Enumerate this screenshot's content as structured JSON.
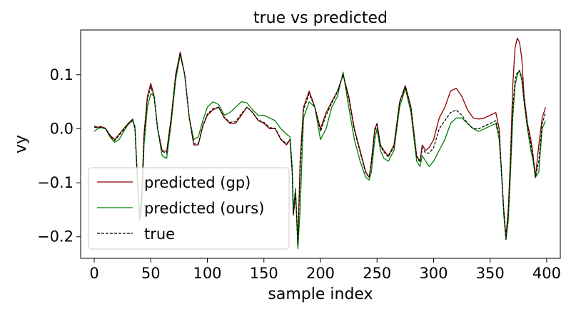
{
  "chart_data": {
    "type": "line",
    "title": "true vs predicted",
    "xlabel": "sample index",
    "ylabel": "vy",
    "xlim": [
      -12,
      412
    ],
    "ylim": [
      -0.24,
      0.183
    ],
    "xticks": [
      0,
      50,
      100,
      150,
      200,
      250,
      300,
      350,
      400
    ],
    "xtick_labels": [
      "0",
      "50",
      "100",
      "150",
      "200",
      "250",
      "300",
      "350",
      "400"
    ],
    "yticks": [
      -0.2,
      -0.1,
      0.0,
      0.1
    ],
    "ytick_labels": [
      "−0.2",
      "−0.1",
      "0.0",
      "0.1"
    ],
    "grid": false,
    "legend_position": "lower-left",
    "series": [
      {
        "name": "predicted (gp)",
        "color": "#8b0000",
        "dash": "solid",
        "x": [
          0,
          3,
          6,
          10,
          14,
          18,
          22,
          26,
          30,
          34,
          36,
          38,
          40,
          42,
          44,
          47,
          50,
          53,
          56,
          60,
          64,
          68,
          72,
          76,
          80,
          84,
          88,
          92,
          96,
          100,
          105,
          110,
          115,
          120,
          125,
          130,
          135,
          140,
          145,
          150,
          155,
          160,
          165,
          170,
          173,
          175,
          176,
          178,
          180,
          182,
          185,
          190,
          195,
          200,
          205,
          210,
          215,
          220,
          225,
          230,
          235,
          240,
          243,
          245,
          248,
          250,
          253,
          256,
          260,
          265,
          270,
          275,
          280,
          285,
          288,
          290,
          293,
          296,
          300,
          305,
          310,
          315,
          320,
          325,
          330,
          335,
          340,
          345,
          350,
          355,
          358,
          360,
          362,
          364,
          366,
          368,
          370,
          372,
          374,
          376,
          378,
          380,
          383,
          386,
          388,
          390,
          393,
          396,
          399
        ],
        "y": [
          0.005,
          0.003,
          0.004,
          0.001,
          -0.012,
          -0.02,
          -0.01,
          0.0,
          0.01,
          0.018,
          0.0,
          -0.08,
          -0.16,
          -0.12,
          -0.01,
          0.06,
          0.084,
          0.06,
          0.0,
          -0.04,
          -0.042,
          0.02,
          0.1,
          0.142,
          0.1,
          0.02,
          -0.03,
          -0.03,
          0.005,
          0.025,
          0.035,
          0.04,
          0.02,
          0.01,
          0.01,
          0.025,
          0.04,
          0.03,
          0.015,
          0.01,
          0.0,
          0.0,
          -0.02,
          -0.03,
          -0.02,
          -0.08,
          -0.16,
          -0.12,
          -0.21,
          -0.06,
          0.04,
          0.07,
          0.04,
          0.0,
          0.03,
          0.05,
          0.07,
          0.1,
          0.06,
          0.0,
          -0.04,
          -0.08,
          -0.09,
          -0.06,
          0.0,
          0.01,
          -0.03,
          -0.04,
          -0.05,
          -0.03,
          0.05,
          0.08,
          0.04,
          -0.05,
          -0.06,
          -0.03,
          -0.04,
          -0.035,
          -0.02,
          0.02,
          0.04,
          0.07,
          0.075,
          0.06,
          0.035,
          0.02,
          0.018,
          0.02,
          0.025,
          0.03,
          0.0,
          -0.08,
          -0.15,
          -0.2,
          -0.15,
          -0.05,
          0.08,
          0.15,
          0.168,
          0.16,
          0.13,
          0.06,
          0.01,
          -0.02,
          -0.05,
          -0.09,
          -0.03,
          0.02,
          0.04
        ]
      },
      {
        "name": "predicted (ours)",
        "color": "#008000",
        "dash": "solid",
        "x": [
          0,
          3,
          6,
          10,
          14,
          18,
          22,
          26,
          30,
          34,
          36,
          38,
          40,
          42,
          44,
          47,
          50,
          53,
          56,
          60,
          64,
          68,
          72,
          76,
          80,
          84,
          88,
          92,
          96,
          100,
          105,
          110,
          115,
          120,
          125,
          130,
          135,
          140,
          145,
          150,
          155,
          160,
          165,
          170,
          173,
          175,
          176,
          178,
          180,
          182,
          185,
          190,
          195,
          200,
          205,
          210,
          215,
          220,
          225,
          230,
          235,
          240,
          243,
          245,
          248,
          250,
          253,
          256,
          260,
          265,
          270,
          275,
          280,
          285,
          288,
          290,
          293,
          296,
          300,
          305,
          310,
          315,
          320,
          325,
          330,
          335,
          340,
          345,
          350,
          355,
          358,
          360,
          362,
          364,
          366,
          368,
          370,
          372,
          374,
          376,
          378,
          380,
          383,
          386,
          388,
          390,
          393,
          396,
          399
        ],
        "y": [
          -0.005,
          0.0,
          0.002,
          0.0,
          -0.015,
          -0.025,
          -0.02,
          -0.005,
          0.008,
          0.015,
          0.005,
          -0.09,
          -0.17,
          -0.15,
          -0.03,
          0.04,
          0.065,
          0.06,
          0.0,
          -0.05,
          -0.055,
          0.01,
          0.09,
          0.137,
          0.1,
          0.02,
          -0.02,
          -0.015,
          0.015,
          0.04,
          0.05,
          0.045,
          0.025,
          0.03,
          0.04,
          0.05,
          0.048,
          0.035,
          0.025,
          0.025,
          0.02,
          0.015,
          0.0,
          -0.01,
          -0.015,
          -0.07,
          -0.15,
          -0.11,
          -0.222,
          -0.15,
          0.02,
          0.05,
          0.04,
          -0.02,
          0.0,
          0.04,
          0.06,
          0.105,
          0.04,
          -0.02,
          -0.06,
          -0.09,
          -0.095,
          -0.08,
          -0.02,
          0.0,
          -0.04,
          -0.055,
          -0.06,
          -0.04,
          0.04,
          0.075,
          0.03,
          -0.06,
          -0.07,
          -0.05,
          -0.06,
          -0.07,
          -0.06,
          -0.04,
          -0.02,
          0.01,
          0.02,
          0.02,
          0.01,
          0.0,
          -0.005,
          0.0,
          0.005,
          0.01,
          -0.02,
          -0.08,
          -0.16,
          -0.205,
          -0.17,
          -0.08,
          0.02,
          0.08,
          0.1,
          0.108,
          0.09,
          0.05,
          0.0,
          -0.04,
          -0.06,
          -0.09,
          -0.08,
          0.0,
          0.015
        ]
      },
      {
        "name": "true",
        "color": "#000000",
        "dash": "dashed",
        "x": [
          0,
          3,
          6,
          10,
          14,
          18,
          22,
          26,
          30,
          34,
          36,
          38,
          40,
          42,
          44,
          47,
          50,
          53,
          56,
          60,
          64,
          68,
          72,
          76,
          80,
          84,
          88,
          92,
          96,
          100,
          105,
          110,
          115,
          120,
          125,
          130,
          135,
          140,
          145,
          150,
          155,
          160,
          165,
          170,
          173,
          175,
          176,
          178,
          180,
          182,
          185,
          190,
          195,
          200,
          205,
          210,
          215,
          220,
          225,
          230,
          235,
          240,
          243,
          245,
          248,
          250,
          253,
          256,
          260,
          265,
          270,
          275,
          280,
          285,
          288,
          290,
          293,
          296,
          300,
          305,
          310,
          315,
          320,
          325,
          330,
          335,
          340,
          345,
          350,
          355,
          358,
          360,
          362,
          364,
          366,
          368,
          370,
          372,
          374,
          376,
          378,
          380,
          383,
          386,
          388,
          390,
          393,
          396,
          399
        ],
        "y": [
          0.003,
          0.002,
          0.003,
          0.0,
          -0.013,
          -0.022,
          -0.012,
          -0.002,
          0.009,
          0.017,
          0.0,
          -0.085,
          -0.165,
          -0.125,
          -0.015,
          0.055,
          0.078,
          0.058,
          0.0,
          -0.042,
          -0.045,
          0.018,
          0.098,
          0.14,
          0.1,
          0.02,
          -0.028,
          -0.028,
          0.006,
          0.027,
          0.037,
          0.04,
          0.021,
          0.012,
          0.013,
          0.028,
          0.04,
          0.03,
          0.016,
          0.012,
          0.002,
          0.001,
          -0.019,
          -0.028,
          -0.02,
          -0.08,
          -0.158,
          -0.118,
          -0.215,
          -0.08,
          0.035,
          0.065,
          0.04,
          -0.005,
          0.025,
          0.048,
          0.068,
          0.1,
          0.055,
          -0.003,
          -0.043,
          -0.082,
          -0.09,
          -0.065,
          -0.005,
          0.008,
          -0.032,
          -0.043,
          -0.052,
          -0.033,
          0.048,
          0.078,
          0.038,
          -0.052,
          -0.062,
          -0.035,
          -0.045,
          -0.045,
          -0.035,
          0.0,
          0.015,
          0.03,
          0.035,
          0.025,
          0.01,
          0.0,
          0.0,
          0.005,
          0.01,
          0.015,
          -0.01,
          -0.08,
          -0.15,
          -0.205,
          -0.16,
          -0.06,
          0.04,
          0.09,
          0.105,
          0.108,
          0.095,
          0.05,
          0.005,
          -0.03,
          -0.055,
          -0.09,
          -0.06,
          0.01,
          0.03
        ]
      }
    ]
  }
}
